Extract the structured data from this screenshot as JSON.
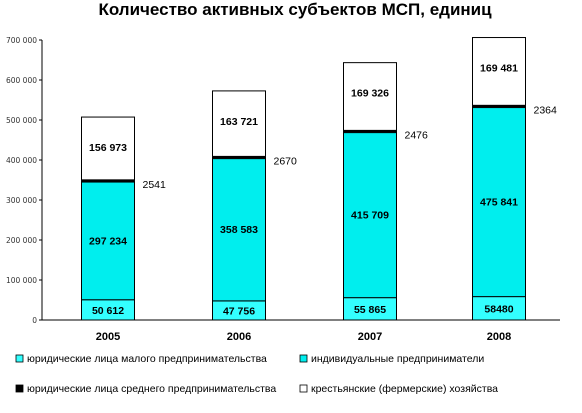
{
  "chart_data": {
    "type": "bar",
    "stacked": true,
    "title": "Количество активных субъектов МСП, единиц",
    "xlabel": "",
    "ylabel": "",
    "categories": [
      "2005",
      "2006",
      "2007",
      "2008"
    ],
    "ylim": [
      0,
      700000
    ],
    "yticks": [
      0,
      100000,
      200000,
      300000,
      400000,
      500000,
      600000,
      700000
    ],
    "ytick_labels": [
      "0",
      "100 000",
      "200 000",
      "300 000",
      "400 000",
      "500 000",
      "600 000",
      "700 000"
    ],
    "grid": false,
    "legend_position": "bottom",
    "series": [
      {
        "name": "юридические лица малого предпринимательства",
        "color": "#33ffff",
        "values": [
          50612,
          47756,
          55865,
          58480
        ],
        "labels": [
          "50 612",
          "47 756",
          "55 865",
          "58480"
        ]
      },
      {
        "name": "индивидуальные предприниматели",
        "color": "#00eeee",
        "values": [
          297234,
          358583,
          415709,
          475841
        ],
        "labels": [
          "297 234",
          "358 583",
          "415 709",
          "475 841"
        ]
      },
      {
        "name": "юридические лица среднего предпринимательства",
        "color": "#000000",
        "values": [
          2541,
          2670,
          2476,
          2364
        ],
        "labels": [
          "2541",
          "2670",
          "2476",
          "2364"
        ]
      },
      {
        "name": "крестьянские (фермерские) хозяйства",
        "color": "#ffffff",
        "values": [
          156973,
          163721,
          169326,
          169481
        ],
        "labels": [
          "156 973",
          "163 721",
          "169 326",
          "169 481"
        ]
      }
    ]
  }
}
